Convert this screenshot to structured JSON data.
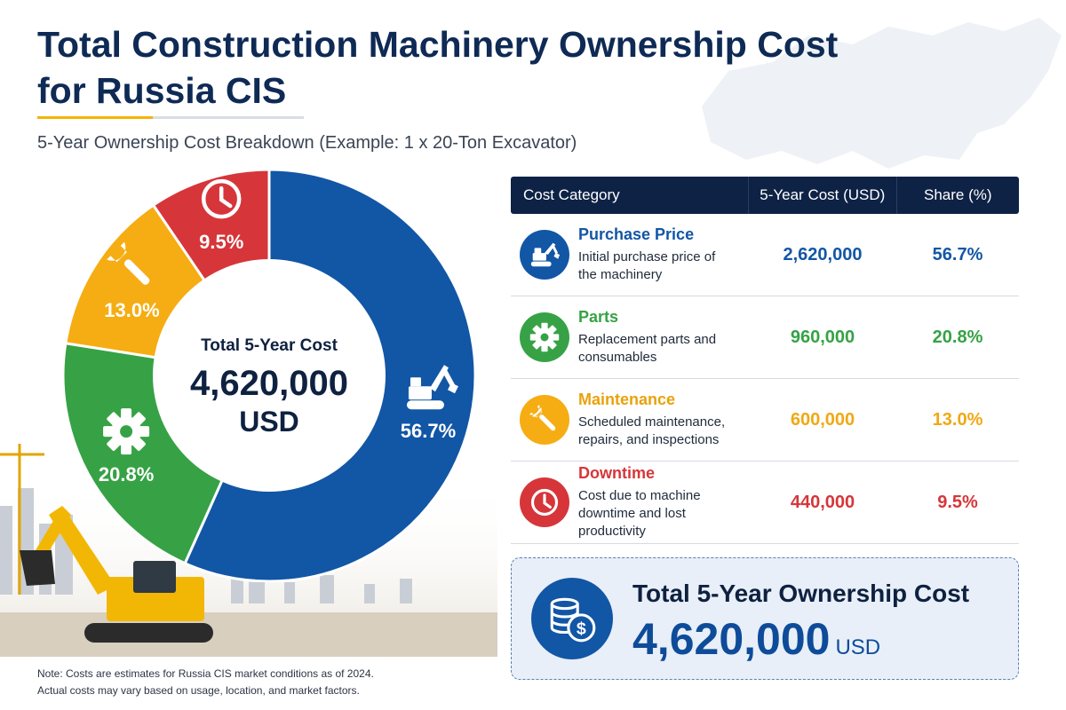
{
  "header": {
    "title": "Total Construction Machinery Ownership Cost for Russia CIS",
    "subtitle": "5-Year Ownership Cost Breakdown (Example: 1 x 20-Ton Excavator)"
  },
  "colors": {
    "purchase": "#1256a6",
    "parts": "#36a245",
    "maintenance": "#f5ad13",
    "downtime": "#d6363a",
    "navy": "#0e2246"
  },
  "donut_center": {
    "label": "Total 5-Year Cost",
    "value": "4,620,000",
    "unit": "USD"
  },
  "table": {
    "headers": {
      "category": "Cost Category",
      "cost": "5-Year Cost (USD)",
      "share": "Share (%)"
    },
    "rows": [
      {
        "name": "Purchase Price",
        "desc1": "Initial purchase price of",
        "desc2": "the machinery",
        "cost": "2,620,000",
        "share": "56.7%",
        "icon": "excavator-icon"
      },
      {
        "name": "Parts",
        "desc1": "Replacement parts and",
        "desc2": "consumables",
        "cost": "960,000",
        "share": "20.8%",
        "icon": "gear-icon"
      },
      {
        "name": "Maintenance",
        "desc1": "Scheduled maintenance,",
        "desc2": "repairs, and inspections",
        "cost": "600,000",
        "share": "13.0%",
        "icon": "wrench-icon"
      },
      {
        "name": "Downtime",
        "desc1": "Cost due to machine",
        "desc2": "downtime and lost productivity",
        "cost": "440,000",
        "share": "9.5%",
        "icon": "clock-icon"
      }
    ]
  },
  "total": {
    "label": "Total 5-Year Ownership Cost",
    "value": "4,620,000",
    "unit": "USD",
    "icon": "coins-icon"
  },
  "note": {
    "line1": "Note: Costs are estimates for Russia CIS market conditions as of 2024.",
    "line2": "Actual costs may vary based on usage, location, and market factors."
  },
  "chart_data": {
    "type": "pie",
    "categories": [
      "Purchase Price",
      "Parts",
      "Maintenance",
      "Downtime"
    ],
    "values": [
      56.7,
      20.8,
      13.0,
      9.5
    ],
    "labels": [
      "56.7%",
      "20.8%",
      "13.0%",
      "9.5%"
    ],
    "icons": [
      "excavator-icon",
      "gear-icon",
      "wrench-icon",
      "clock-icon"
    ],
    "colors": [
      "#1256a6",
      "#36a245",
      "#f5ad13",
      "#d6363a"
    ]
  }
}
